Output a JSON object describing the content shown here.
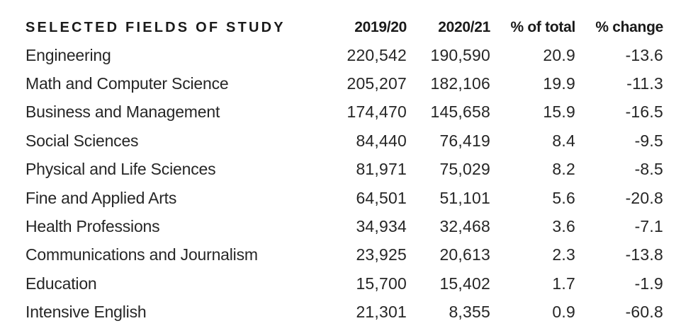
{
  "chart_data": {
    "type": "table",
    "columns": [
      "SELECTED FIELDS OF STUDY",
      "2019/20",
      "2020/21",
      "% of total",
      "% change"
    ],
    "rows": [
      {
        "field": "Engineering",
        "y2019_20": "220,542",
        "y2020_21": "190,590",
        "pct_total": "20.9",
        "pct_change": "-13.6"
      },
      {
        "field": "Math and Computer Science",
        "y2019_20": "205,207",
        "y2020_21": "182,106",
        "pct_total": "19.9",
        "pct_change": "-11.3"
      },
      {
        "field": "Business and Management",
        "y2019_20": "174,470",
        "y2020_21": "145,658",
        "pct_total": "15.9",
        "pct_change": "-16.5"
      },
      {
        "field": "Social Sciences",
        "y2019_20": "84,440",
        "y2020_21": "76,419",
        "pct_total": "8.4",
        "pct_change": "-9.5"
      },
      {
        "field": "Physical and Life Sciences",
        "y2019_20": "81,971",
        "y2020_21": "75,029",
        "pct_total": "8.2",
        "pct_change": "-8.5"
      },
      {
        "field": "Fine and Applied Arts",
        "y2019_20": "64,501",
        "y2020_21": "51,101",
        "pct_total": "5.6",
        "pct_change": "-20.8"
      },
      {
        "field": "Health Professions",
        "y2019_20": "34,934",
        "y2020_21": "32,468",
        "pct_total": "3.6",
        "pct_change": "-7.1"
      },
      {
        "field": "Communications and Journalism",
        "y2019_20": "23,925",
        "y2020_21": "20,613",
        "pct_total": "2.3",
        "pct_change": "-13.8"
      },
      {
        "field": "Education",
        "y2019_20": "15,700",
        "y2020_21": "15,402",
        "pct_total": "1.7",
        "pct_change": "-1.9"
      },
      {
        "field": "Intensive English",
        "y2019_20": "21,301",
        "y2020_21": "8,355",
        "pct_total": "0.9",
        "pct_change": "-60.8"
      }
    ]
  }
}
